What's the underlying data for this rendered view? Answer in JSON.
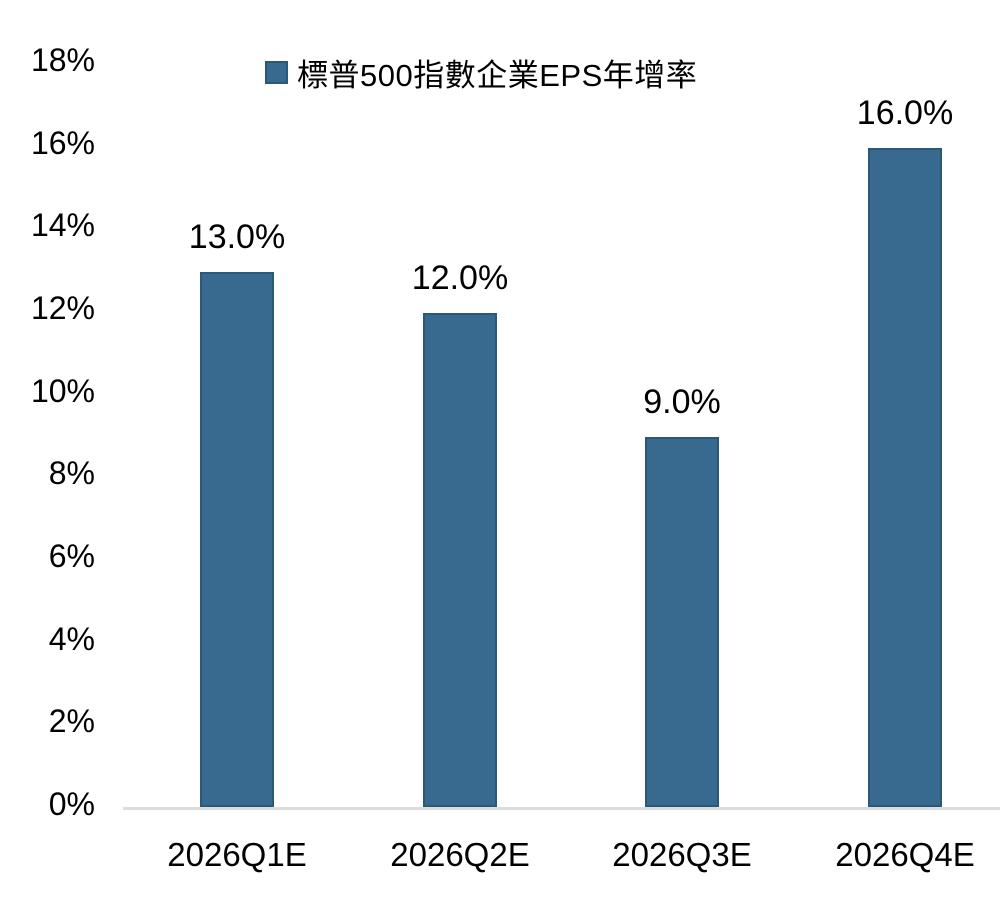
{
  "chart_data": {
    "type": "bar",
    "title": "",
    "legend": {
      "label": "標普500指數企業EPS年增率",
      "position": "top"
    },
    "categories": [
      "2026Q1E",
      "2026Q2E",
      "2026Q3E",
      "2026Q4E"
    ],
    "values": [
      13.0,
      12.0,
      9.0,
      16.0
    ],
    "value_labels": [
      "13.0%",
      "12.0%",
      "9.0%",
      "16.0%"
    ],
    "xlabel": "",
    "ylabel": "",
    "ylim": [
      0,
      18
    ],
    "ytick_step": 2,
    "ytick_labels": [
      "0%",
      "2%",
      "4%",
      "6%",
      "8%",
      "10%",
      "12%",
      "14%",
      "16%",
      "18%"
    ],
    "grid": false,
    "colors": {
      "bar_fill": "#386A90",
      "bar_border": "#2A5878",
      "axis_line": "#DCDCDC",
      "text": "#000000"
    }
  }
}
